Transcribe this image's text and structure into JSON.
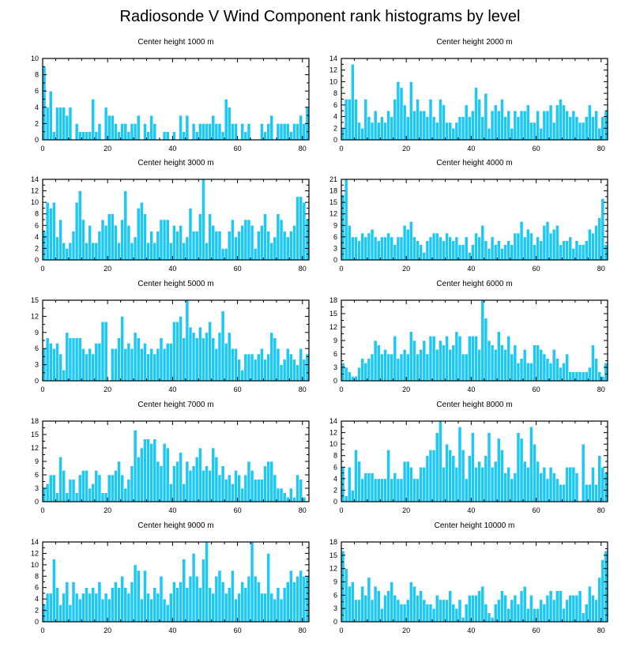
{
  "page_title": "Radiosonde V Wind Component rank histograms by level",
  "bar_color": "#1EC8F5",
  "chart_data": [
    {
      "type": "bar",
      "title": "Center height 1000 m",
      "xlim": [
        0,
        82
      ],
      "xticks": [
        0,
        20,
        40,
        60,
        80
      ],
      "ylim": [
        0,
        10
      ],
      "yticks": [
        0,
        2,
        4,
        6,
        8,
        10
      ],
      "values": [
        9,
        4,
        6,
        1,
        4,
        4,
        4,
        3,
        4,
        0,
        2,
        1,
        1,
        1,
        1,
        5,
        1,
        2,
        0,
        4,
        3,
        3,
        2,
        1,
        2,
        2,
        1,
        2,
        2,
        3,
        0,
        2,
        1,
        3,
        2,
        0,
        0,
        1,
        1,
        0,
        1,
        0,
        3,
        1,
        3,
        0,
        2,
        1,
        2,
        2,
        2,
        2,
        3,
        2,
        2,
        1,
        5,
        4,
        2,
        2,
        0,
        2,
        1,
        2,
        0,
        0,
        0,
        2,
        1,
        2,
        3,
        0,
        2,
        2,
        2,
        2,
        1,
        2,
        2,
        3,
        2,
        4
      ]
    },
    {
      "type": "bar",
      "title": "Center height 2000 m",
      "xlim": [
        0,
        82
      ],
      "xticks": [
        0,
        20,
        40,
        60,
        80
      ],
      "ylim": [
        0,
        14
      ],
      "yticks": [
        0,
        2,
        4,
        6,
        8,
        10,
        12,
        14
      ],
      "values": [
        2,
        7,
        7,
        13,
        7,
        3,
        2,
        7,
        4,
        3,
        5,
        3,
        4,
        3,
        5,
        4,
        7,
        10,
        9,
        6,
        4,
        10,
        5,
        7,
        5,
        5,
        4,
        7,
        4,
        3,
        7,
        6,
        3,
        3,
        2,
        3,
        4,
        4,
        6,
        4,
        5,
        9,
        7,
        4,
        8,
        2,
        5,
        6,
        5,
        7,
        4,
        5,
        2,
        5,
        4,
        5,
        5,
        6,
        3,
        3,
        5,
        2,
        5,
        5,
        6,
        3,
        6,
        7,
        6,
        5,
        4,
        5,
        4,
        3,
        3,
        4,
        6,
        4,
        5,
        2,
        4,
        5
      ]
    },
    {
      "type": "bar",
      "title": "Center height 3000 m",
      "xlim": [
        0,
        82
      ],
      "xticks": [
        0,
        20,
        40,
        60,
        80
      ],
      "ylim": [
        0,
        14
      ],
      "yticks": [
        0,
        2,
        4,
        6,
        8,
        10,
        12,
        14
      ],
      "values": [
        5,
        10,
        9,
        10,
        4,
        7,
        3,
        2,
        3,
        5,
        10,
        12,
        7,
        3,
        6,
        3,
        3,
        5,
        7,
        6,
        8,
        8,
        6,
        3,
        7,
        12,
        6,
        3,
        4,
        9,
        10,
        8,
        3,
        5,
        3,
        5,
        7,
        7,
        7,
        3,
        6,
        5,
        6,
        3,
        4,
        9,
        5,
        5,
        8,
        14,
        3,
        8,
        6,
        5,
        5,
        2,
        2,
        5,
        7,
        4,
        5,
        6,
        7,
        7,
        6,
        2,
        5,
        6,
        8,
        5,
        3,
        4,
        8,
        7,
        5,
        4,
        5,
        6,
        11,
        11,
        10,
        7
      ]
    },
    {
      "type": "bar",
      "title": "Center height 4000 m",
      "xlim": [
        0,
        82
      ],
      "xticks": [
        0,
        20,
        40,
        60,
        80
      ],
      "ylim": [
        0,
        21
      ],
      "yticks": [
        0,
        3,
        6,
        9,
        12,
        15,
        18,
        21
      ],
      "values": [
        17,
        21,
        9,
        6,
        6,
        5,
        7,
        6,
        7,
        8,
        6,
        5,
        6,
        6,
        7,
        6,
        4,
        6,
        6,
        9,
        8,
        10,
        6,
        5,
        4,
        2,
        5,
        6,
        7,
        7,
        6,
        5,
        7,
        6,
        5,
        6,
        4,
        4,
        6,
        2,
        4,
        7,
        6,
        9,
        5,
        3,
        6,
        4,
        5,
        3,
        4,
        5,
        4,
        7,
        7,
        10,
        6,
        8,
        7,
        4,
        6,
        5,
        9,
        10,
        7,
        8,
        9,
        4,
        5,
        5,
        6,
        3,
        5,
        4,
        4,
        5,
        8,
        7,
        9,
        11,
        16,
        4
      ]
    },
    {
      "type": "bar",
      "title": "Center height 5000 m",
      "xlim": [
        0,
        82
      ],
      "xticks": [
        0,
        20,
        40,
        60,
        80
      ],
      "ylim": [
        0,
        15
      ],
      "yticks": [
        0,
        3,
        6,
        9,
        12,
        15
      ],
      "values": [
        6,
        8,
        7,
        6,
        7,
        5,
        2,
        9,
        8,
        8,
        8,
        8,
        6,
        5,
        6,
        5,
        7,
        7,
        11,
        11,
        0,
        6,
        6,
        8,
        12,
        6,
        7,
        6,
        9,
        8,
        6,
        7,
        5,
        6,
        5,
        6,
        8,
        6,
        7,
        7,
        11,
        11,
        12,
        8,
        15,
        10,
        9,
        8,
        10,
        8,
        9,
        11,
        8,
        6,
        9,
        13,
        7,
        9,
        6,
        6,
        4,
        2,
        5,
        5,
        5,
        4,
        5,
        6,
        4,
        5,
        9,
        8,
        6,
        3,
        4,
        6,
        5,
        4,
        3,
        6,
        4,
        5
      ]
    },
    {
      "type": "bar",
      "title": "Center height 6000 m",
      "xlim": [
        0,
        82
      ],
      "xticks": [
        0,
        20,
        40,
        60,
        80
      ],
      "ylim": [
        0,
        18
      ],
      "yticks": [
        0,
        3,
        6,
        9,
        12,
        15,
        18
      ],
      "values": [
        4,
        3,
        2,
        1,
        1,
        3,
        5,
        4,
        5,
        6,
        9,
        8,
        6,
        7,
        6,
        6,
        10,
        5,
        6,
        7,
        6,
        11,
        9,
        6,
        7,
        9,
        6,
        10,
        10,
        7,
        9,
        8,
        10,
        7,
        8,
        11,
        10,
        6,
        6,
        10,
        10,
        10,
        7,
        18,
        14,
        9,
        8,
        7,
        11,
        8,
        7,
        10,
        6,
        8,
        4,
        5,
        7,
        4,
        4,
        8,
        8,
        7,
        6,
        5,
        4,
        7,
        5,
        3,
        4,
        6,
        2,
        2,
        2,
        2,
        2,
        2,
        3,
        8,
        5,
        2,
        1,
        4
      ]
    },
    {
      "type": "bar",
      "title": "Center height 7000 m",
      "xlim": [
        0,
        82
      ],
      "xticks": [
        0,
        20,
        40,
        60,
        80
      ],
      "ylim": [
        0,
        18
      ],
      "yticks": [
        0,
        3,
        6,
        9,
        12,
        15,
        18
      ],
      "values": [
        3,
        4,
        6,
        6,
        2,
        10,
        7,
        2,
        5,
        5,
        2,
        6,
        7,
        7,
        3,
        4,
        7,
        6,
        2,
        2,
        6,
        6,
        7,
        9,
        6,
        3,
        5,
        8,
        16,
        10,
        12,
        14,
        14,
        13,
        14,
        9,
        8,
        13,
        12,
        4,
        8,
        9,
        11,
        4,
        9,
        7,
        8,
        10,
        12,
        7,
        8,
        7,
        12,
        10,
        6,
        8,
        5,
        6,
        4,
        7,
        6,
        3,
        6,
        9,
        7,
        5,
        5,
        5,
        8,
        9,
        9,
        6,
        3,
        3,
        2,
        1,
        3,
        1,
        6,
        5,
        1,
        0
      ]
    },
    {
      "type": "bar",
      "title": "Center height 8000 m",
      "xlim": [
        0,
        82
      ],
      "xticks": [
        0,
        20,
        40,
        60,
        80
      ],
      "ylim": [
        0,
        14
      ],
      "yticks": [
        0,
        2,
        4,
        6,
        8,
        10,
        12,
        14
      ],
      "values": [
        6,
        1,
        6,
        2,
        9,
        7,
        4,
        5,
        5,
        5,
        4,
        4,
        4,
        4,
        9,
        4,
        5,
        4,
        4,
        7,
        7,
        6,
        4,
        4,
        6,
        6,
        8,
        9,
        9,
        12,
        14,
        6,
        10,
        9,
        8,
        6,
        13,
        9,
        4,
        8,
        12,
        6,
        7,
        6,
        8,
        12,
        6,
        7,
        11,
        9,
        5,
        6,
        4,
        5,
        12,
        11,
        7,
        6,
        13,
        10,
        7,
        5,
        6,
        4,
        6,
        5,
        4,
        3,
        3,
        6,
        6,
        6,
        5,
        0,
        10,
        3,
        3,
        6,
        3,
        8,
        6,
        5
      ]
    },
    {
      "type": "bar",
      "title": "Center height 9000 m",
      "xlim": [
        0,
        82
      ],
      "xticks": [
        0,
        20,
        40,
        60,
        80
      ],
      "ylim": [
        0,
        14
      ],
      "yticks": [
        0,
        2,
        4,
        6,
        8,
        10,
        12,
        14
      ],
      "values": [
        3,
        5,
        5,
        11,
        6,
        3,
        5,
        7,
        3,
        7,
        5,
        4,
        5,
        6,
        5,
        6,
        5,
        7,
        4,
        5,
        4,
        6,
        7,
        6,
        8,
        6,
        5,
        7,
        10,
        9,
        4,
        9,
        5,
        4,
        6,
        5,
        8,
        4,
        3,
        5,
        7,
        6,
        7,
        11,
        6,
        8,
        12,
        8,
        6,
        11,
        14,
        6,
        5,
        8,
        9,
        7,
        5,
        6,
        9,
        4,
        5,
        7,
        6,
        8,
        14,
        8,
        7,
        5,
        5,
        12,
        5,
        4,
        6,
        4,
        6,
        7,
        9,
        7,
        8,
        9,
        8,
        8
      ]
    },
    {
      "type": "bar",
      "title": "Center height 10000 m",
      "xlim": [
        0,
        82
      ],
      "xticks": [
        0,
        20,
        40,
        60,
        80
      ],
      "ylim": [
        0,
        18
      ],
      "yticks": [
        0,
        3,
        6,
        9,
        12,
        15,
        18
      ],
      "values": [
        16,
        12,
        8,
        9,
        5,
        5,
        8,
        6,
        10,
        5,
        8,
        7,
        3,
        6,
        7,
        9,
        6,
        5,
        4,
        4,
        5,
        9,
        8,
        6,
        7,
        5,
        4,
        4,
        3,
        6,
        5,
        5,
        5,
        7,
        4,
        3,
        5,
        1,
        4,
        6,
        6,
        6,
        7,
        8,
        4,
        2,
        1,
        4,
        5,
        7,
        6,
        3,
        5,
        6,
        4,
        7,
        8,
        3,
        6,
        3,
        3,
        5,
        4,
        6,
        7,
        5,
        7,
        7,
        3,
        5,
        6,
        6,
        6,
        7,
        2,
        4,
        8,
        6,
        5,
        10,
        14,
        16
      ]
    }
  ]
}
